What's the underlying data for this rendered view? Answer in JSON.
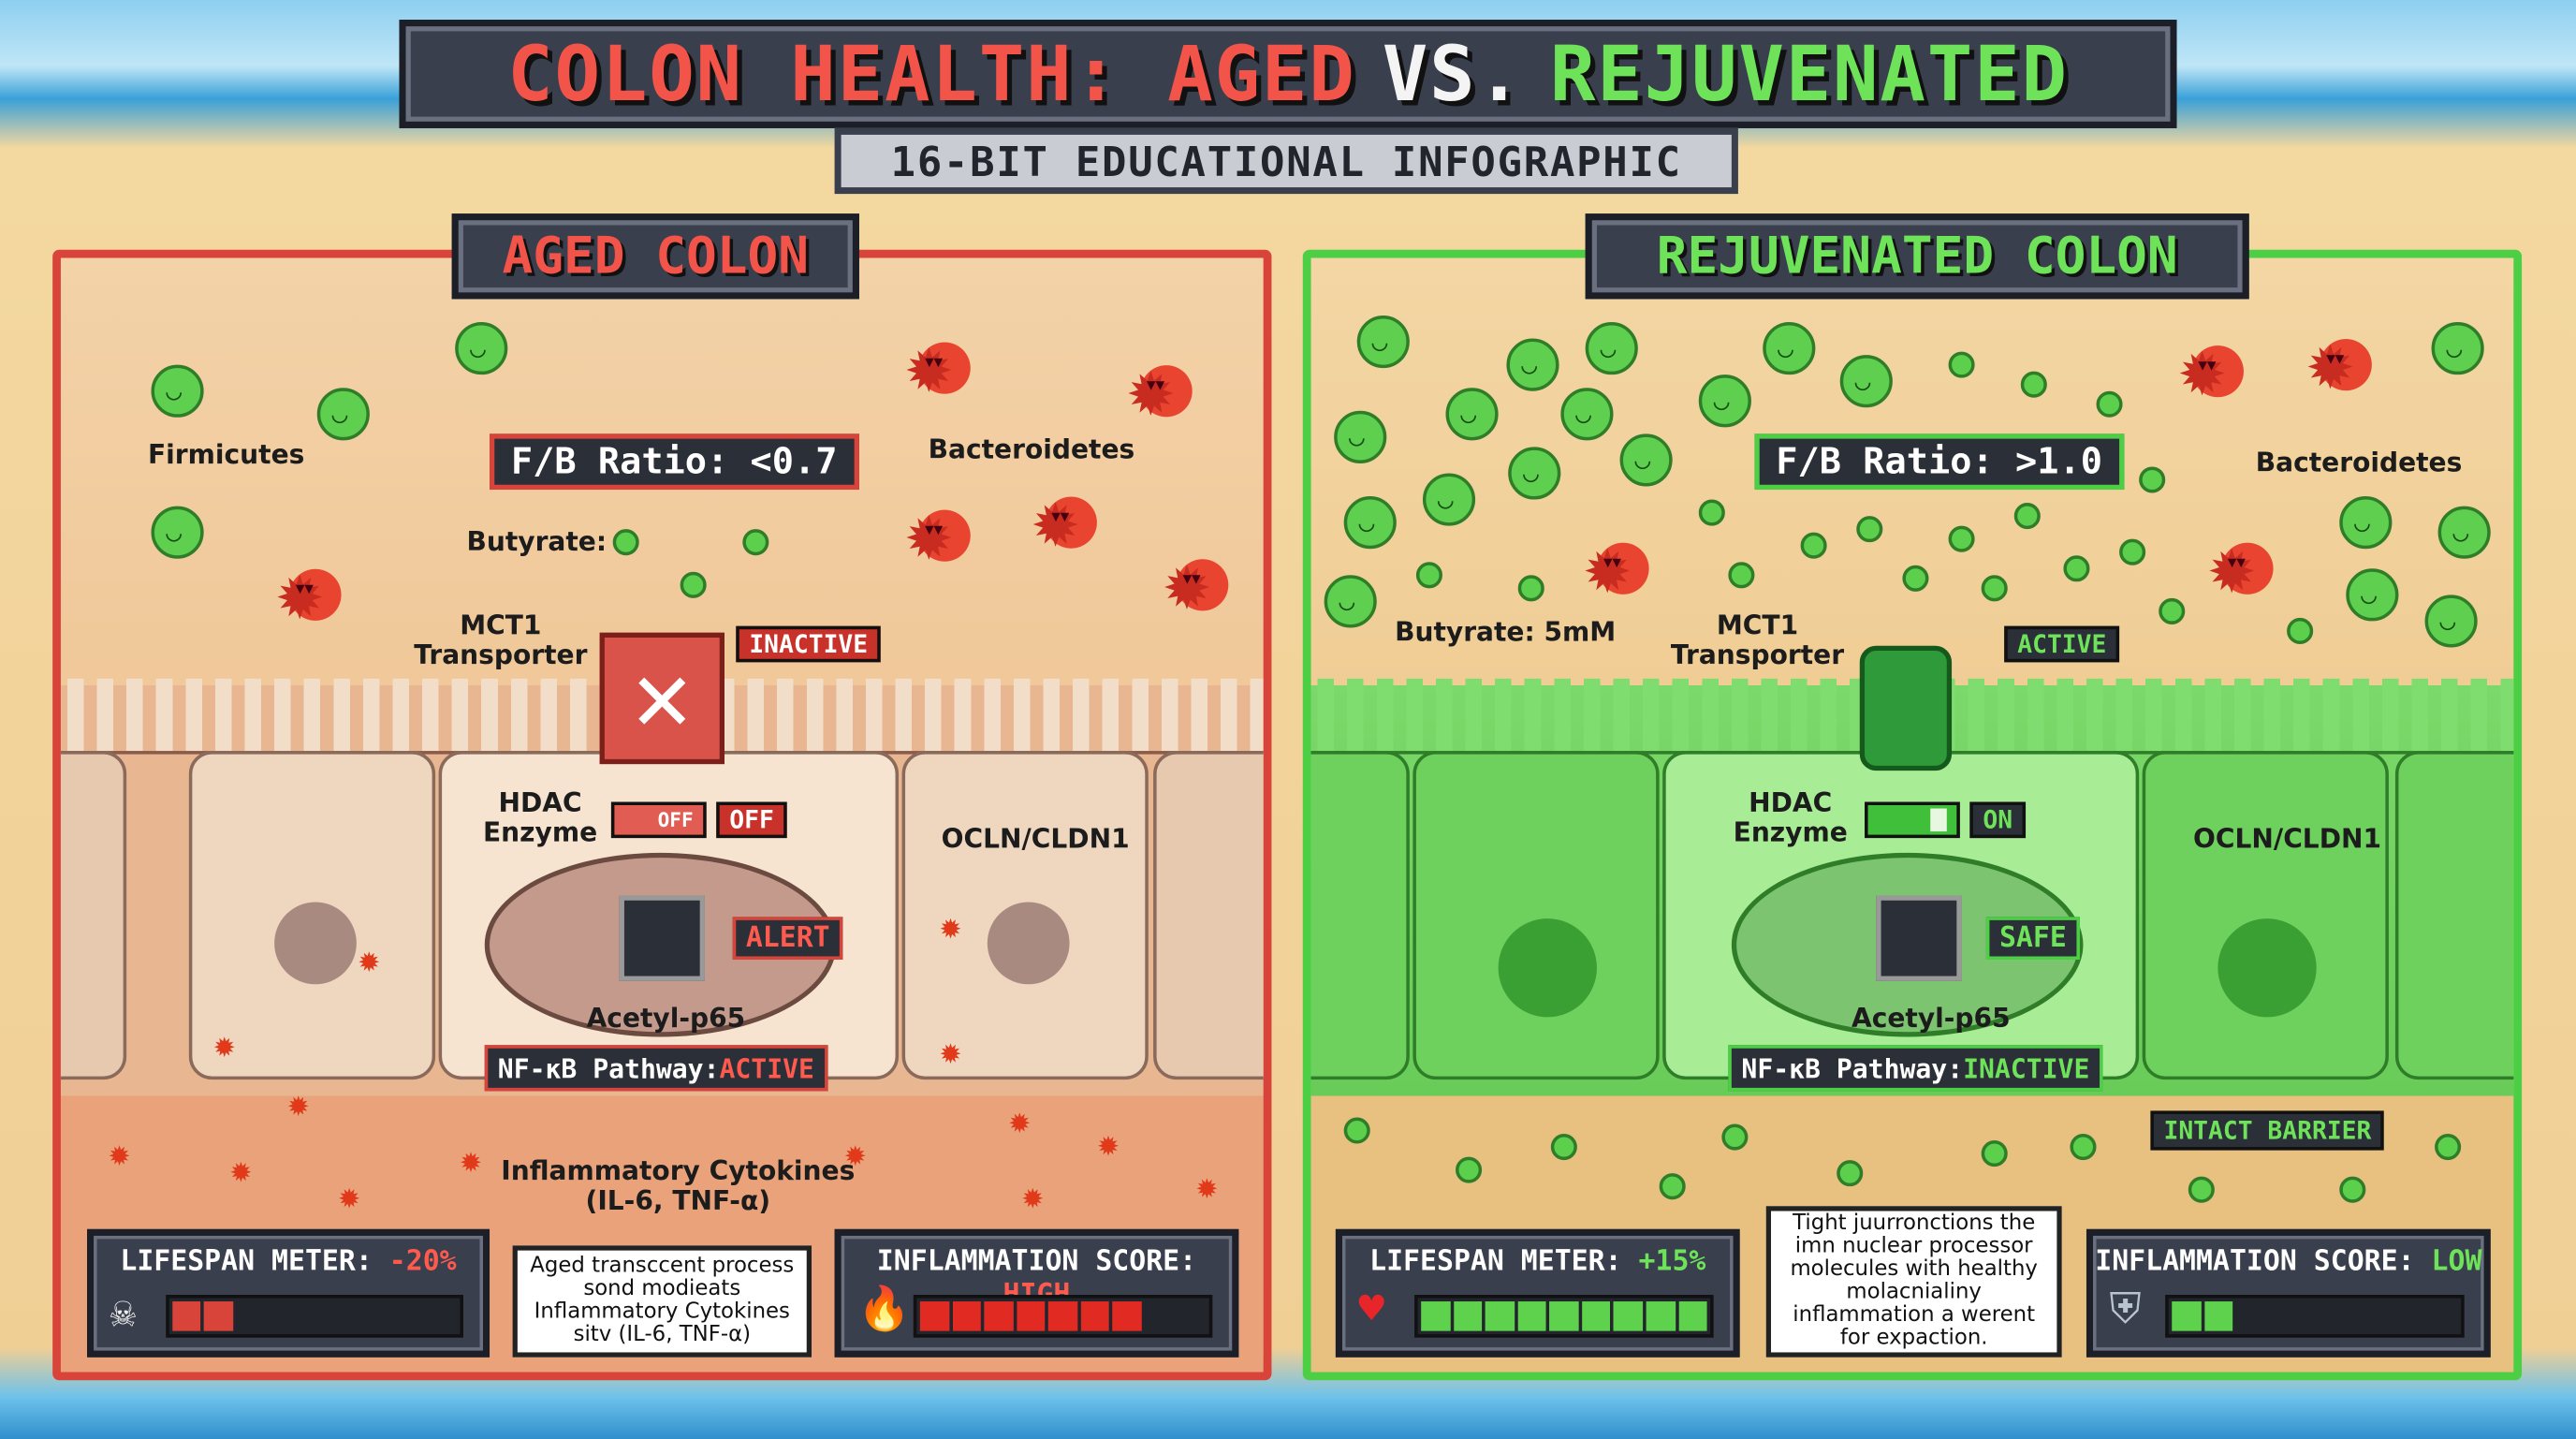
{
  "title": {
    "part1": "COLON HEALTH: AGED",
    "part2": "VS.",
    "part3": "REJUVENATED"
  },
  "subtitle": "16-BIT EDUCATIONAL INFOGRAPHIC",
  "colors": {
    "aged": "#d9443a",
    "rejuvenated": "#4ccf45",
    "panel_dark": "#3a3f4d"
  },
  "aged": {
    "header": "AGED COLON",
    "firmicutes": "Firmicutes",
    "bacteroidetes": "Bacteroidetes",
    "ratio": "F/B Ratio: <0.7",
    "butyrate": "Butyrate:",
    "mct1": "MCT1\nTransporter",
    "mct1_status": "INACTIVE",
    "hdac": "HDAC\nEnzyme",
    "hdac_toggle": "OFF",
    "hdac_status": "OFF",
    "tight_junction": "OCLN/CLDN1",
    "nucleus_status": "ALERT",
    "acetyl": "Acetyl-p65",
    "nfkb_label": "NF-κB Pathway: ",
    "nfkb_status": "ACTIVE",
    "cytokines": "Inflammatory Cytokines\n(IL-6, TNF-α)",
    "lifespan_label": "LIFESPAN METER: ",
    "lifespan_value": "-20%",
    "lifespan_fraction": 0.2,
    "note": "Aged transccent process sond modieats Inflammatory Cytokines sitv (IL-6, TNF-α)",
    "inflammation_label": "INFLAMMATION SCORE: ",
    "inflammation_value": "HIGH",
    "inflammation_fraction": 0.8,
    "icons": {
      "lifespan": "skull-icon",
      "inflammation": "flame-icon",
      "transporter": "x-mark-icon",
      "nucleus": "chip-icon"
    }
  },
  "rejuvenated": {
    "header": "REJUVENATED COLON",
    "bacteroidetes": "Bacteroidetes",
    "ratio": "F/B Ratio: >1.0",
    "butyrate": "Butyrate: 5mM",
    "mct1": "MCT1\nTransporter",
    "mct1_status": "ACTIVE",
    "hdac": "HDAC\nEnzyme",
    "hdac_status": "ON",
    "tight_junction": "OCLN/CLDN1",
    "nucleus_status": "SAFE",
    "acetyl": "Acetyl-p65",
    "nfkb_label": "NF-κB Pathway: ",
    "nfkb_status": "INACTIVE",
    "barrier": "INTACT BARRIER",
    "lifespan_label": "LIFESPAN METER: ",
    "lifespan_value": "+15%",
    "lifespan_fraction": 0.95,
    "note": "Tight juurronctions the imn nuclear processor molecules with healthy molacnialiny inflammation a werent for expaction.",
    "inflammation_label": "INFLAMMATION SCORE: ",
    "inflammation_value": "LOW",
    "inflammation_fraction": 0.2,
    "icons": {
      "lifespan": "heart-icon",
      "inflammation": "shield-icon",
      "transporter": "channel-icon",
      "nucleus": "chip-icon"
    }
  }
}
